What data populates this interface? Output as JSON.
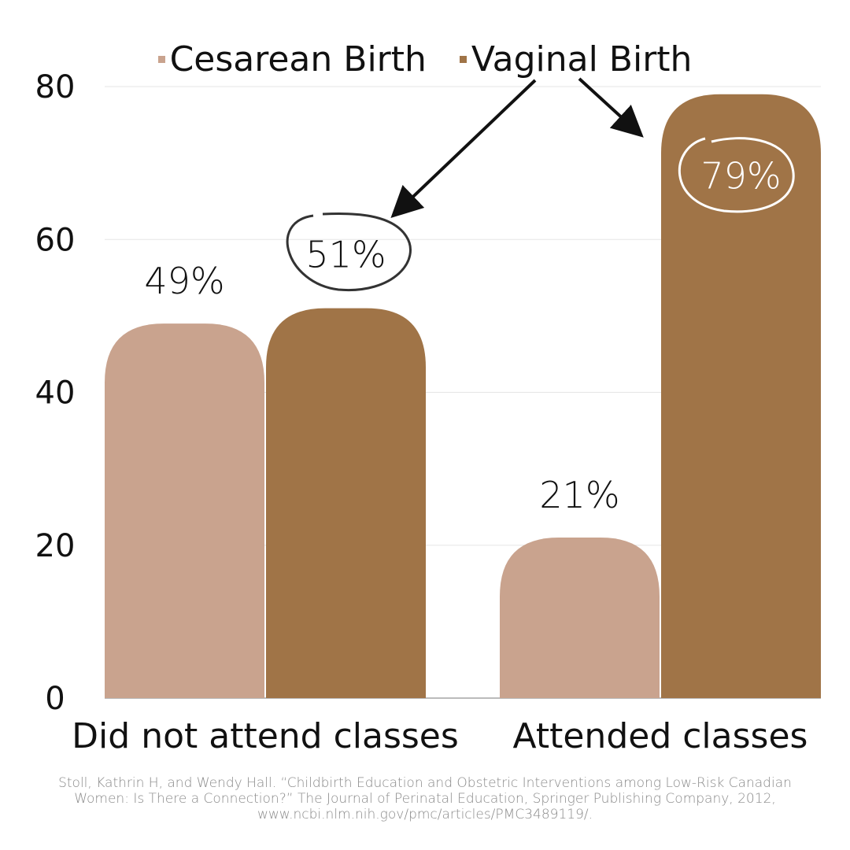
{
  "chart_data": {
    "type": "bar",
    "categories": [
      "Did not attend classes",
      "Attended classes"
    ],
    "series": [
      {
        "name": "Cesarean Birth",
        "values": [
          49,
          21
        ],
        "labels": [
          "49%",
          "21%"
        ],
        "color": "#c9a38e"
      },
      {
        "name": "Vaginal Birth",
        "values": [
          51,
          79
        ],
        "labels": [
          "51%",
          "79%"
        ],
        "color": "#a07447"
      }
    ],
    "ylim": [
      0,
      80
    ],
    "yticks": [
      "0",
      "20",
      "40",
      "60",
      "80"
    ],
    "grid": true,
    "legend": "top",
    "annotations": "Circled Vaginal Birth values (51%, 79%) with arrows pointing from the legend"
  },
  "citation": "Stoll, Kathrin H, and Wendy Hall. “Childbirth Education and Obstetric Interventions among Low-Risk Canadian Women: Is There a Connection?” The Journal of Perinatal Education, Springer Publishing Company, 2012, www.ncbi.nlm.nih.gov/pmc/articles/PMC3489119/."
}
